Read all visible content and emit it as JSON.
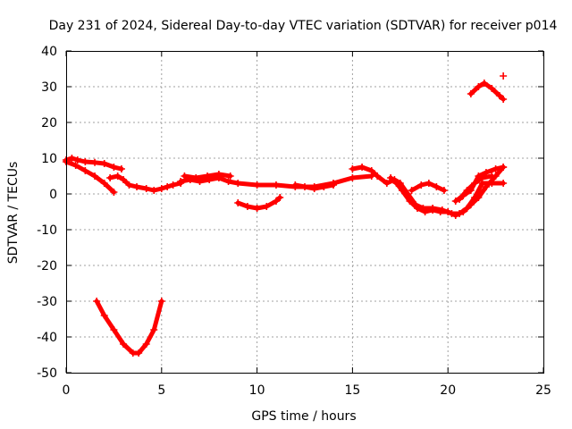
{
  "chart_data": {
    "type": "scatter",
    "title": "Day 231 of 2024, Sidereal Day-to-day VTEC variation (SDTVAR) for receiver p014",
    "xlabel": "GPS time / hours",
    "ylabel": "SDTVAR / TECUs",
    "xlim": [
      0,
      25
    ],
    "ylim": [
      -50,
      40
    ],
    "xticks": [
      "0",
      "5",
      "10",
      "15",
      "20",
      "25"
    ],
    "yticks": [
      "-50",
      "-40",
      "-30",
      "-20",
      "-10",
      "0",
      "10",
      "20",
      "30",
      "40"
    ],
    "grid": true,
    "marker": "+",
    "color": "#ff0000",
    "series": [
      {
        "name": "pass-1",
        "points": [
          [
            0,
            9.5
          ],
          [
            0.3,
            10
          ],
          [
            0.6,
            9.5
          ],
          [
            1,
            9
          ],
          [
            1.5,
            8.8
          ],
          [
            2,
            8.5
          ],
          [
            2.5,
            7.5
          ],
          [
            2.9,
            7
          ]
        ]
      },
      {
        "name": "pass-2",
        "points": [
          [
            0,
            9
          ],
          [
            0.5,
            8
          ],
          [
            1,
            6.5
          ],
          [
            1.5,
            5
          ],
          [
            2,
            3
          ],
          [
            2.5,
            0.5
          ]
        ]
      },
      {
        "name": "pass-3",
        "points": [
          [
            2.3,
            4.5
          ],
          [
            2.7,
            5
          ],
          [
            3,
            4
          ],
          [
            3.3,
            2.5
          ],
          [
            3.7,
            2
          ],
          [
            4.2,
            1.5
          ],
          [
            4.6,
            1
          ],
          [
            5,
            1.5
          ],
          [
            5.3,
            2
          ],
          [
            5.6,
            2.5
          ],
          [
            6,
            3
          ]
        ]
      },
      {
        "name": "pass-4",
        "points": [
          [
            1.6,
            -30
          ],
          [
            2,
            -34
          ],
          [
            2.5,
            -38
          ],
          [
            3,
            -42
          ],
          [
            3.5,
            -44.5
          ],
          [
            3.8,
            -44.5
          ],
          [
            4.2,
            -42
          ],
          [
            4.6,
            -38
          ],
          [
            5,
            -30
          ]
        ]
      },
      {
        "name": "pass-5",
        "points": [
          [
            6,
            3.5
          ],
          [
            6.5,
            4
          ],
          [
            7,
            3.5
          ],
          [
            7.5,
            4
          ],
          [
            8,
            4.5
          ],
          [
            8.5,
            3.5
          ],
          [
            9,
            3
          ],
          [
            10,
            2.5
          ],
          [
            11,
            2.5
          ],
          [
            12,
            2
          ],
          [
            13,
            2
          ],
          [
            14,
            3
          ],
          [
            15,
            4.5
          ],
          [
            16,
            5
          ]
        ]
      },
      {
        "name": "pass-6",
        "points": [
          [
            6.2,
            5
          ],
          [
            6.8,
            4.5
          ],
          [
            7.4,
            5
          ],
          [
            8,
            5.5
          ],
          [
            8.6,
            5
          ]
        ]
      },
      {
        "name": "pass-7",
        "points": [
          [
            9,
            -2.5
          ],
          [
            9.5,
            -3.5
          ],
          [
            10,
            -4
          ],
          [
            10.5,
            -3.5
          ],
          [
            11,
            -2
          ],
          [
            11.2,
            -1
          ]
        ]
      },
      {
        "name": "pass-8",
        "points": [
          [
            12,
            2.5
          ],
          [
            12.5,
            2
          ],
          [
            13,
            1.5
          ],
          [
            13.5,
            2
          ],
          [
            14,
            2.5
          ]
        ]
      },
      {
        "name": "pass-9",
        "points": [
          [
            15,
            7
          ],
          [
            15.5,
            7.5
          ],
          [
            16,
            6.5
          ],
          [
            16.3,
            5
          ],
          [
            16.8,
            3
          ],
          [
            17.2,
            4
          ],
          [
            17.5,
            3
          ],
          [
            17.9,
            0
          ],
          [
            18.3,
            -3
          ],
          [
            18.7,
            -4
          ],
          [
            19.2,
            -4
          ],
          [
            19.7,
            -4.5
          ],
          [
            20.2,
            -5.5
          ],
          [
            20.6,
            -5.5
          ],
          [
            21,
            -4
          ],
          [
            21.4,
            -1
          ],
          [
            21.8,
            3
          ],
          [
            22.3,
            3
          ],
          [
            22.9,
            3
          ]
        ]
      },
      {
        "name": "pass-10",
        "points": [
          [
            17,
            4.5
          ],
          [
            17.3,
            3
          ],
          [
            17.6,
            1
          ],
          [
            18,
            -2
          ],
          [
            18.4,
            -4
          ],
          [
            18.8,
            -5
          ],
          [
            19.2,
            -4.5
          ],
          [
            19.6,
            -5
          ],
          [
            20,
            -5
          ],
          [
            20.4,
            -6
          ],
          [
            20.8,
            -5
          ],
          [
            21.2,
            -3
          ],
          [
            21.6,
            -1
          ],
          [
            22,
            2
          ],
          [
            22.5,
            5
          ],
          [
            22.9,
            7.5
          ]
        ]
      },
      {
        "name": "pass-11",
        "points": [
          [
            18.1,
            1
          ],
          [
            18.6,
            2.5
          ],
          [
            19,
            3
          ],
          [
            19.4,
            2
          ],
          [
            19.8,
            1
          ]
        ]
      },
      {
        "name": "pass-12",
        "points": [
          [
            20.4,
            -2
          ],
          [
            20.8,
            -0.5
          ],
          [
            21.2,
            1
          ],
          [
            21.6,
            5
          ],
          [
            22,
            6
          ],
          [
            22.5,
            7
          ],
          [
            22.9,
            7.5
          ]
        ]
      },
      {
        "name": "pass-13",
        "points": [
          [
            20.6,
            -1.5
          ],
          [
            21,
            1
          ],
          [
            21.4,
            3
          ],
          [
            21.8,
            4.5
          ],
          [
            22.3,
            5
          ]
        ]
      },
      {
        "name": "pass-14",
        "points": [
          [
            21.2,
            28
          ],
          [
            21.6,
            30
          ],
          [
            21.9,
            31
          ],
          [
            22.3,
            29.5
          ],
          [
            22.7,
            27.5
          ],
          [
            22.9,
            26.5
          ]
        ]
      },
      {
        "name": "isolated-point",
        "points": [
          [
            22.9,
            33
          ]
        ]
      }
    ]
  }
}
